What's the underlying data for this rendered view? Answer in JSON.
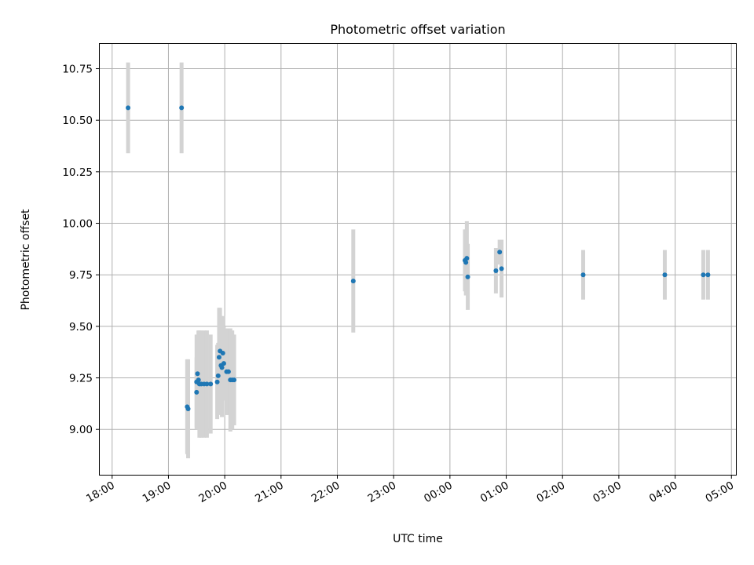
{
  "chart_data": {
    "type": "scatter",
    "title": "Photometric offset variation",
    "xlabel": "UTC time",
    "ylabel": "Photometric offset",
    "x_ticks": [
      "18:00",
      "19:00",
      "20:00",
      "21:00",
      "22:00",
      "23:00",
      "00:00",
      "01:00",
      "02:00",
      "03:00",
      "04:00",
      "05:00"
    ],
    "y_ticks": [
      "9.00",
      "9.25",
      "9.50",
      "9.75",
      "10.00",
      "10.25",
      "10.50",
      "10.75"
    ],
    "xlim_hours_from_18": [
      -0.22,
      11.08
    ],
    "ylim": [
      8.78,
      10.87
    ],
    "grid": true,
    "point_color": "#1f77b4",
    "errorbar_color": "#d3d3d3",
    "series": [
      {
        "points": [
          {
            "t": "18:17",
            "y": 10.56,
            "err": 0.22
          },
          {
            "t": "19:14",
            "y": 10.56,
            "err": 0.22
          },
          {
            "t": "19:20",
            "y": 9.11,
            "err": 0.23
          },
          {
            "t": "19:21",
            "y": 9.1,
            "err": 0.24
          },
          {
            "t": "19:30",
            "y": 9.23,
            "err": 0.23
          },
          {
            "t": "19:30",
            "y": 9.18,
            "err": 0.17
          },
          {
            "t": "19:31",
            "y": 9.27,
            "err": 0.16
          },
          {
            "t": "19:32",
            "y": 9.24,
            "err": 0.24
          },
          {
            "t": "19:33",
            "y": 9.22,
            "err": 0.26
          },
          {
            "t": "19:35",
            "y": 9.22,
            "err": 0.26
          },
          {
            "t": "19:38",
            "y": 9.22,
            "err": 0.26
          },
          {
            "t": "19:41",
            "y": 9.22,
            "err": 0.26
          },
          {
            "t": "19:45",
            "y": 9.22,
            "err": 0.24
          },
          {
            "t": "19:52",
            "y": 9.23,
            "err": 0.18
          },
          {
            "t": "19:53",
            "y": 9.26,
            "err": 0.16
          },
          {
            "t": "19:54",
            "y": 9.35,
            "err": 0.24
          },
          {
            "t": "19:55",
            "y": 9.38,
            "err": 0.21
          },
          {
            "t": "19:56",
            "y": 9.31,
            "err": 0.24
          },
          {
            "t": "19:57",
            "y": 9.3,
            "err": 0.24
          },
          {
            "t": "19:58",
            "y": 9.37,
            "err": 0.18
          },
          {
            "t": "19:59",
            "y": 9.32,
            "err": 0.18
          },
          {
            "t": "20:02",
            "y": 9.28,
            "err": 0.21
          },
          {
            "t": "20:04",
            "y": 9.28,
            "err": 0.21
          },
          {
            "t": "20:06",
            "y": 9.24,
            "err": 0.25
          },
          {
            "t": "20:08",
            "y": 9.24,
            "err": 0.24
          },
          {
            "t": "20:10",
            "y": 9.24,
            "err": 0.22
          },
          {
            "t": "22:17",
            "y": 9.72,
            "err": 0.25
          },
          {
            "t": "00:16",
            "y": 9.82,
            "err": 0.15
          },
          {
            "t": "00:17",
            "y": 9.81,
            "err": 0.16
          },
          {
            "t": "00:18",
            "y": 9.83,
            "err": 0.18
          },
          {
            "t": "00:19",
            "y": 9.74,
            "err": 0.16
          },
          {
            "t": "00:49",
            "y": 9.77,
            "err": 0.11
          },
          {
            "t": "00:53",
            "y": 9.86,
            "err": 0.06
          },
          {
            "t": "00:55",
            "y": 9.78,
            "err": 0.14
          },
          {
            "t": "02:22",
            "y": 9.75,
            "err": 0.12
          },
          {
            "t": "03:49",
            "y": 9.75,
            "err": 0.12
          },
          {
            "t": "04:30",
            "y": 9.75,
            "err": 0.12
          },
          {
            "t": "04:35",
            "y": 9.75,
            "err": 0.12
          }
        ]
      }
    ]
  }
}
